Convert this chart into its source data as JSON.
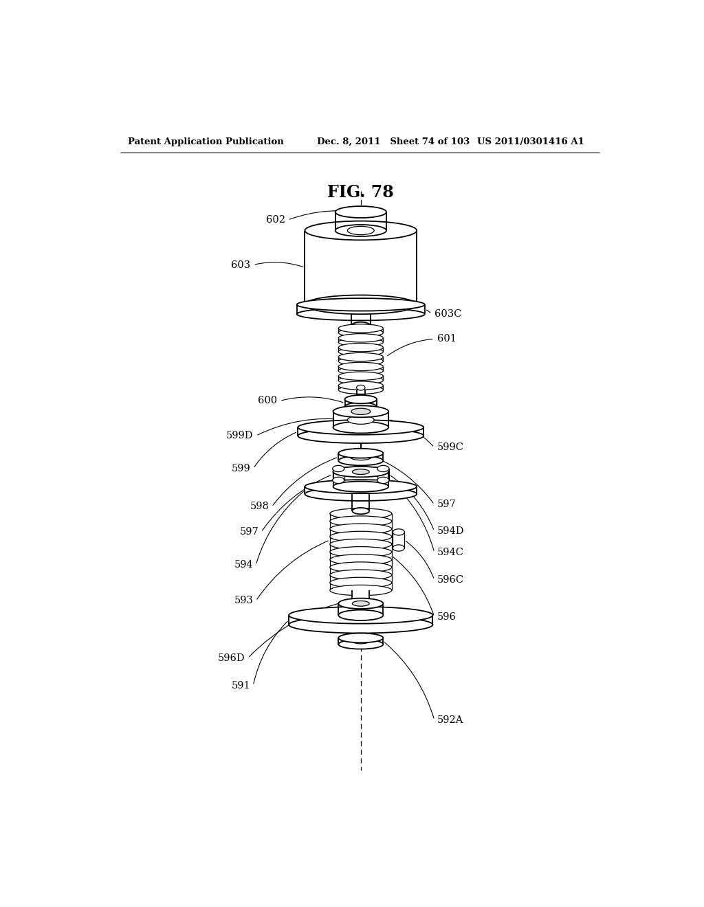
{
  "bg_color": "#ffffff",
  "line_color": "#000000",
  "title": "FIG. 78",
  "header_left": "Patent Application Publication",
  "header_mid": "Dec. 8, 2011   Sheet 74 of 103",
  "header_right": "US 2011/0301416 A1"
}
